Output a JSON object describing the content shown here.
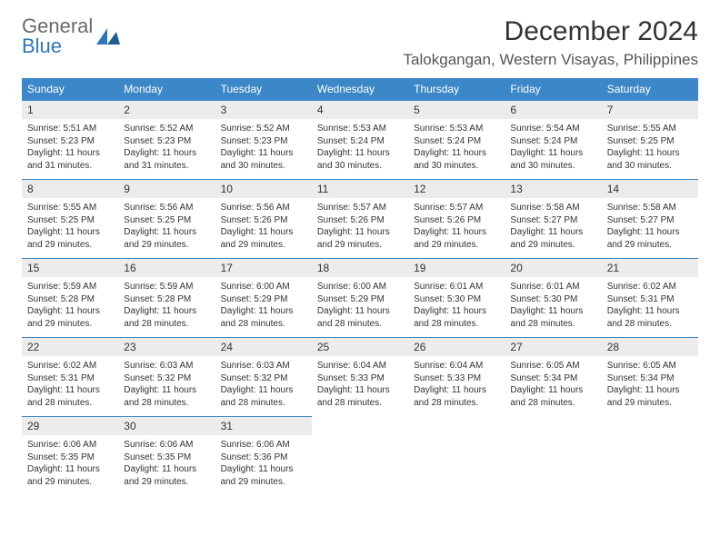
{
  "logo": {
    "text1": "General",
    "text2": "Blue"
  },
  "title": "December 2024",
  "location": "Talokgangan, Western Visayas, Philippines",
  "colors": {
    "header_bg": "#3c87c7",
    "header_fg": "#ffffff",
    "daynum_bg": "#ececec",
    "row_border": "#3c87c7",
    "logo_gray": "#6a6a6a",
    "logo_blue": "#2f77b8"
  },
  "columns": [
    "Sunday",
    "Monday",
    "Tuesday",
    "Wednesday",
    "Thursday",
    "Friday",
    "Saturday"
  ],
  "weeks": [
    [
      {
        "n": "1",
        "sr": "5:51 AM",
        "ss": "5:23 PM",
        "dl": "11 hours and 31 minutes."
      },
      {
        "n": "2",
        "sr": "5:52 AM",
        "ss": "5:23 PM",
        "dl": "11 hours and 31 minutes."
      },
      {
        "n": "3",
        "sr": "5:52 AM",
        "ss": "5:23 PM",
        "dl": "11 hours and 30 minutes."
      },
      {
        "n": "4",
        "sr": "5:53 AM",
        "ss": "5:24 PM",
        "dl": "11 hours and 30 minutes."
      },
      {
        "n": "5",
        "sr": "5:53 AM",
        "ss": "5:24 PM",
        "dl": "11 hours and 30 minutes."
      },
      {
        "n": "6",
        "sr": "5:54 AM",
        "ss": "5:24 PM",
        "dl": "11 hours and 30 minutes."
      },
      {
        "n": "7",
        "sr": "5:55 AM",
        "ss": "5:25 PM",
        "dl": "11 hours and 30 minutes."
      }
    ],
    [
      {
        "n": "8",
        "sr": "5:55 AM",
        "ss": "5:25 PM",
        "dl": "11 hours and 29 minutes."
      },
      {
        "n": "9",
        "sr": "5:56 AM",
        "ss": "5:25 PM",
        "dl": "11 hours and 29 minutes."
      },
      {
        "n": "10",
        "sr": "5:56 AM",
        "ss": "5:26 PM",
        "dl": "11 hours and 29 minutes."
      },
      {
        "n": "11",
        "sr": "5:57 AM",
        "ss": "5:26 PM",
        "dl": "11 hours and 29 minutes."
      },
      {
        "n": "12",
        "sr": "5:57 AM",
        "ss": "5:26 PM",
        "dl": "11 hours and 29 minutes."
      },
      {
        "n": "13",
        "sr": "5:58 AM",
        "ss": "5:27 PM",
        "dl": "11 hours and 29 minutes."
      },
      {
        "n": "14",
        "sr": "5:58 AM",
        "ss": "5:27 PM",
        "dl": "11 hours and 29 minutes."
      }
    ],
    [
      {
        "n": "15",
        "sr": "5:59 AM",
        "ss": "5:28 PM",
        "dl": "11 hours and 29 minutes."
      },
      {
        "n": "16",
        "sr": "5:59 AM",
        "ss": "5:28 PM",
        "dl": "11 hours and 28 minutes."
      },
      {
        "n": "17",
        "sr": "6:00 AM",
        "ss": "5:29 PM",
        "dl": "11 hours and 28 minutes."
      },
      {
        "n": "18",
        "sr": "6:00 AM",
        "ss": "5:29 PM",
        "dl": "11 hours and 28 minutes."
      },
      {
        "n": "19",
        "sr": "6:01 AM",
        "ss": "5:30 PM",
        "dl": "11 hours and 28 minutes."
      },
      {
        "n": "20",
        "sr": "6:01 AM",
        "ss": "5:30 PM",
        "dl": "11 hours and 28 minutes."
      },
      {
        "n": "21",
        "sr": "6:02 AM",
        "ss": "5:31 PM",
        "dl": "11 hours and 28 minutes."
      }
    ],
    [
      {
        "n": "22",
        "sr": "6:02 AM",
        "ss": "5:31 PM",
        "dl": "11 hours and 28 minutes."
      },
      {
        "n": "23",
        "sr": "6:03 AM",
        "ss": "5:32 PM",
        "dl": "11 hours and 28 minutes."
      },
      {
        "n": "24",
        "sr": "6:03 AM",
        "ss": "5:32 PM",
        "dl": "11 hours and 28 minutes."
      },
      {
        "n": "25",
        "sr": "6:04 AM",
        "ss": "5:33 PM",
        "dl": "11 hours and 28 minutes."
      },
      {
        "n": "26",
        "sr": "6:04 AM",
        "ss": "5:33 PM",
        "dl": "11 hours and 28 minutes."
      },
      {
        "n": "27",
        "sr": "6:05 AM",
        "ss": "5:34 PM",
        "dl": "11 hours and 28 minutes."
      },
      {
        "n": "28",
        "sr": "6:05 AM",
        "ss": "5:34 PM",
        "dl": "11 hours and 29 minutes."
      }
    ],
    [
      {
        "n": "29",
        "sr": "6:06 AM",
        "ss": "5:35 PM",
        "dl": "11 hours and 29 minutes."
      },
      {
        "n": "30",
        "sr": "6:06 AM",
        "ss": "5:35 PM",
        "dl": "11 hours and 29 minutes."
      },
      {
        "n": "31",
        "sr": "6:06 AM",
        "ss": "5:36 PM",
        "dl": "11 hours and 29 minutes."
      },
      null,
      null,
      null,
      null
    ]
  ],
  "labels": {
    "sunrise": "Sunrise:",
    "sunset": "Sunset:",
    "daylight": "Daylight:"
  }
}
